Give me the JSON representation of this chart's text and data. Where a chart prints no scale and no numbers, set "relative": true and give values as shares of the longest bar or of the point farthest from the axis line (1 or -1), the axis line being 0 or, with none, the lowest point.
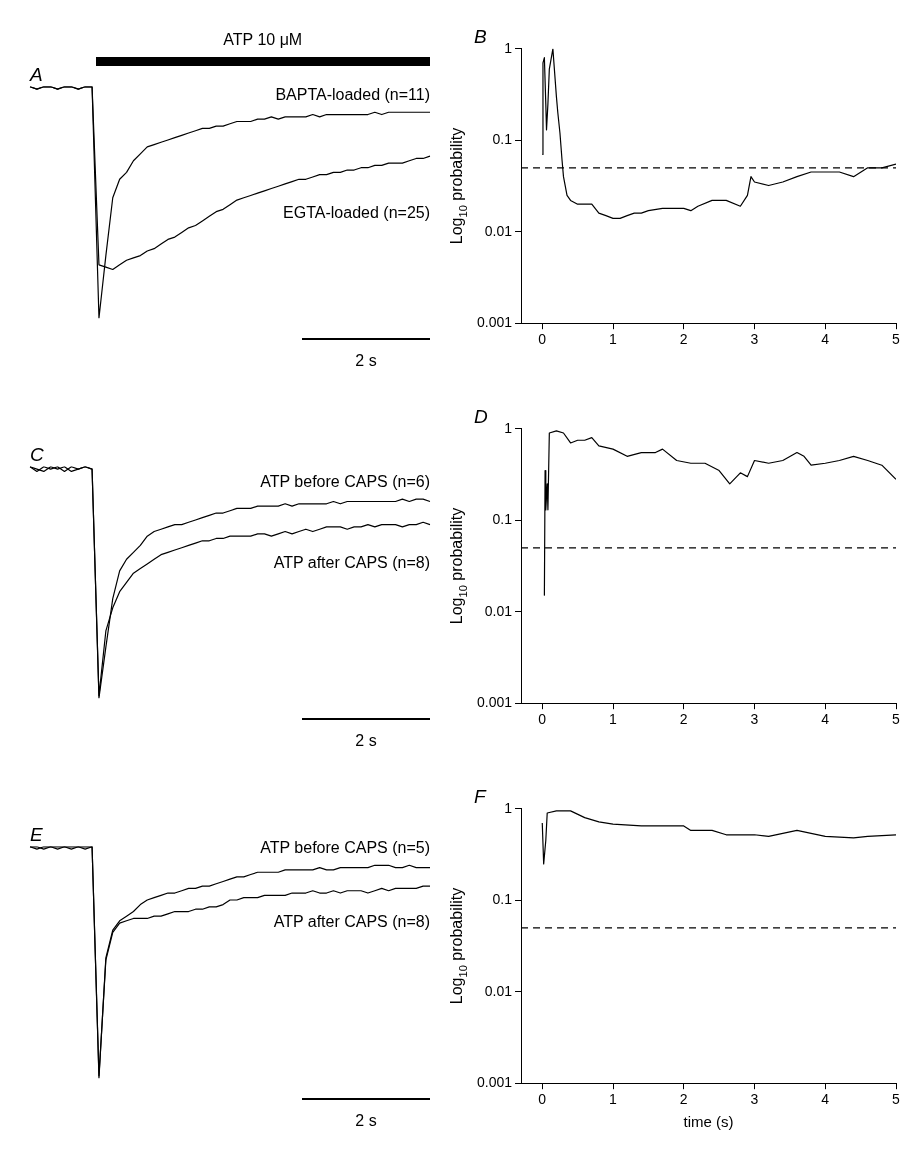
{
  "chart_data": [
    {
      "type": "line",
      "title": "A",
      "categories": [
        null,
        null,
        null,
        null,
        null,
        null,
        null,
        null,
        null,
        null,
        null,
        null,
        null,
        null,
        null,
        null,
        null,
        null,
        null,
        null,
        null,
        null,
        null,
        null,
        null,
        null,
        null,
        null,
        null,
        null,
        null,
        null,
        null,
        null,
        null,
        null,
        null,
        null,
        null,
        null,
        null,
        null,
        null,
        null,
        null,
        null,
        null,
        null,
        null,
        null,
        null,
        null,
        null,
        null,
        null,
        null,
        null,
        null,
        null
      ],
      "relative": true,
      "marker": "none",
      "line_style": "solid",
      "series": [
        {
          "name": "BAPTA-loaded (n=11)",
          "color": "#000000",
          "values": [
            1,
            0.99,
            1,
            1,
            0.99,
            1,
            1,
            0.99,
            1,
            1,
            0,
            0.27,
            0.52,
            0.6,
            0.63,
            0.68,
            0.71,
            0.74,
            0.75,
            0.76,
            0.77,
            0.78,
            0.79,
            0.8,
            0.81,
            0.82,
            0.82,
            0.83,
            0.83,
            0.84,
            0.85,
            0.85,
            0.85,
            0.86,
            0.86,
            0.87,
            0.86,
            0.87,
            0.87,
            0.87,
            0.87,
            0.88,
            0.87,
            0.88,
            0.88,
            0.88,
            0.88,
            0.88,
            0.88,
            0.88,
            0.89,
            0.88,
            0.89,
            0.89,
            0.89,
            0.89,
            0.89,
            0.89,
            0.89
          ]
        },
        {
          "name": "EGTA-loaded (n=25)",
          "color": "#000000",
          "values": [
            1,
            0.99,
            1,
            1,
            0.99,
            1,
            1,
            0.99,
            1,
            1,
            0.23,
            0.22,
            0.21,
            0.23,
            0.25,
            0.26,
            0.27,
            0.29,
            0.3,
            0.32,
            0.34,
            0.35,
            0.37,
            0.39,
            0.4,
            0.42,
            0.44,
            0.46,
            0.47,
            0.49,
            0.51,
            0.52,
            0.53,
            0.54,
            0.55,
            0.56,
            0.57,
            0.58,
            0.59,
            0.6,
            0.6,
            0.61,
            0.62,
            0.62,
            0.63,
            0.63,
            0.64,
            0.64,
            0.65,
            0.65,
            0.66,
            0.66,
            0.67,
            0.67,
            0.67,
            0.68,
            0.69,
            0.69,
            0.7
          ]
        }
      ],
      "annotations": [
        "ATP 10 μM",
        "2 s"
      ]
    },
    {
      "type": "line",
      "title": "B",
      "ylabel": "Log$_{10}$ probability",
      "log": true,
      "xlim": [
        -0.3,
        5
      ],
      "xticks": [
        0,
        1,
        2,
        3,
        4,
        5
      ],
      "ylim": [
        0.001,
        1
      ],
      "yticks": [
        0.001,
        0.01,
        0.1,
        1
      ],
      "marker": "none",
      "line_style": "solid",
      "color": "#000000",
      "x": [
        0,
        0.01,
        0.03,
        0.05,
        0.06,
        0.08,
        0.1,
        0.15,
        0.2,
        0.22,
        0.25,
        0.28,
        0.3,
        0.35,
        0.4,
        0.5,
        0.6,
        0.7,
        0.8,
        0.9,
        1,
        1.1,
        1.2,
        1.3,
        1.4,
        1.5,
        1.7,
        1.9,
        2,
        2.1,
        2.2,
        2.4,
        2.6,
        2.8,
        2.9,
        2.95,
        3,
        3.2,
        3.4,
        3.6,
        3.8,
        4,
        4.2,
        4.4,
        4.6,
        4.8,
        5
      ],
      "values": [
        0.07,
        0.7,
        0.8,
        0.25,
        0.13,
        0.25,
        0.6,
        1,
        0.3,
        0.2,
        0.12,
        0.06,
        0.04,
        0.025,
        0.022,
        0.02,
        0.02,
        0.02,
        0.016,
        0.015,
        0.014,
        0.014,
        0.015,
        0.016,
        0.016,
        0.017,
        0.018,
        0.018,
        0.018,
        0.017,
        0.019,
        0.022,
        0.022,
        0.019,
        0.025,
        0.04,
        0.035,
        0.032,
        0.035,
        0.04,
        0.045,
        0.045,
        0.045,
        0.04,
        0.05,
        0.05,
        0.055
      ],
      "ref_lines": [
        {
          "axis": "y",
          "value": 0.05,
          "color": "#000000",
          "line_style": "dashed"
        }
      ]
    },
    {
      "type": "line",
      "title": "C",
      "categories": [
        null,
        null,
        null,
        null,
        null,
        null,
        null,
        null,
        null,
        null,
        null,
        null,
        null,
        null,
        null,
        null,
        null,
        null,
        null,
        null,
        null,
        null,
        null,
        null,
        null,
        null,
        null,
        null,
        null,
        null,
        null,
        null,
        null,
        null,
        null,
        null,
        null,
        null,
        null,
        null,
        null,
        null,
        null,
        null,
        null,
        null,
        null,
        null,
        null,
        null,
        null,
        null,
        null,
        null,
        null,
        null,
        null,
        null,
        null
      ],
      "relative": true,
      "marker": "none",
      "line_style": "solid",
      "series": [
        {
          "name": "ATP before CAPS (n=6)",
          "color": "#000000",
          "values": [
            1,
            0.98,
            1,
            0.99,
            1,
            0.98,
            1,
            0.99,
            1,
            0.99,
            0,
            0.22,
            0.43,
            0.55,
            0.6,
            0.63,
            0.66,
            0.7,
            0.72,
            0.73,
            0.74,
            0.75,
            0.75,
            0.76,
            0.77,
            0.78,
            0.79,
            0.8,
            0.8,
            0.81,
            0.82,
            0.82,
            0.82,
            0.83,
            0.83,
            0.83,
            0.83,
            0.84,
            0.83,
            0.84,
            0.84,
            0.84,
            0.84,
            0.84,
            0.85,
            0.84,
            0.85,
            0.85,
            0.85,
            0.85,
            0.85,
            0.85,
            0.85,
            0.85,
            0.86,
            0.85,
            0.86,
            0.86,
            0.85
          ]
        },
        {
          "name": "ATP after CAPS (n=8)",
          "color": "#000000",
          "values": [
            1,
            0.99,
            0.98,
            1,
            0.99,
            1,
            0.98,
            0.99,
            1,
            0.99,
            0.01,
            0.29,
            0.39,
            0.46,
            0.5,
            0.54,
            0.56,
            0.58,
            0.6,
            0.62,
            0.63,
            0.64,
            0.65,
            0.66,
            0.67,
            0.68,
            0.68,
            0.69,
            0.69,
            0.7,
            0.7,
            0.7,
            0.7,
            0.71,
            0.71,
            0.7,
            0.71,
            0.72,
            0.71,
            0.72,
            0.73,
            0.72,
            0.73,
            0.74,
            0.74,
            0.74,
            0.73,
            0.74,
            0.74,
            0.75,
            0.74,
            0.75,
            0.75,
            0.75,
            0.74,
            0.75,
            0.75,
            0.76,
            0.75
          ]
        }
      ],
      "annotations": [
        "2 s"
      ]
    },
    {
      "type": "line",
      "title": "D",
      "ylabel": "Log$_{10}$ probability",
      "log": true,
      "xlim": [
        -0.3,
        5
      ],
      "xticks": [
        0,
        1,
        2,
        3,
        4,
        5
      ],
      "ylim": [
        0.001,
        1
      ],
      "yticks": [
        0.001,
        0.01,
        0.1,
        1
      ],
      "marker": "none",
      "line_style": "solid",
      "color": "#000000",
      "x": [
        0.03,
        0.04,
        0.05,
        0.07,
        0.08,
        0.1,
        0.2,
        0.3,
        0.4,
        0.5,
        0.6,
        0.7,
        0.8,
        1,
        1.2,
        1.4,
        1.6,
        1.7,
        1.9,
        2.1,
        2.3,
        2.5,
        2.65,
        2.8,
        2.9,
        3,
        3.2,
        3.4,
        3.6,
        3.7,
        3.8,
        4,
        4.2,
        4.4,
        4.6,
        4.8,
        5
      ],
      "values": [
        0.015,
        0.35,
        0.13,
        0.25,
        0.13,
        0.9,
        0.95,
        0.9,
        0.7,
        0.75,
        0.75,
        0.8,
        0.65,
        0.6,
        0.5,
        0.55,
        0.55,
        0.6,
        0.45,
        0.42,
        0.42,
        0.35,
        0.25,
        0.33,
        0.3,
        0.45,
        0.42,
        0.45,
        0.55,
        0.5,
        0.4,
        0.42,
        0.45,
        0.5,
        0.45,
        0.4,
        0.28
      ],
      "ref_lines": [
        {
          "axis": "y",
          "value": 0.05,
          "color": "#000000",
          "line_style": "dashed"
        }
      ]
    },
    {
      "type": "line",
      "title": "E",
      "categories": [
        null,
        null,
        null,
        null,
        null,
        null,
        null,
        null,
        null,
        null,
        null,
        null,
        null,
        null,
        null,
        null,
        null,
        null,
        null,
        null,
        null,
        null,
        null,
        null,
        null,
        null,
        null,
        null,
        null,
        null,
        null,
        null,
        null,
        null,
        null,
        null,
        null,
        null,
        null,
        null,
        null,
        null,
        null,
        null,
        null,
        null,
        null,
        null,
        null,
        null,
        null,
        null,
        null,
        null,
        null,
        null,
        null,
        null,
        null
      ],
      "relative": true,
      "marker": "none",
      "line_style": "solid",
      "series": [
        {
          "name": "ATP before CAPS (n=5)",
          "color": "#000000",
          "values": [
            1,
            1,
            0.99,
            1,
            1,
            1,
            0.99,
            1,
            1,
            1,
            0,
            0.52,
            0.64,
            0.68,
            0.7,
            0.72,
            0.75,
            0.77,
            0.78,
            0.79,
            0.8,
            0.8,
            0.81,
            0.82,
            0.82,
            0.83,
            0.83,
            0.84,
            0.85,
            0.86,
            0.87,
            0.87,
            0.88,
            0.89,
            0.89,
            0.89,
            0.89,
            0.9,
            0.9,
            0.9,
            0.9,
            0.9,
            0.91,
            0.9,
            0.9,
            0.91,
            0.91,
            0.91,
            0.91,
            0.91,
            0.92,
            0.92,
            0.92,
            0.91,
            0.91,
            0.92,
            0.91,
            0.91,
            0.91
          ]
        },
        {
          "name": "ATP after CAPS (n=8)",
          "color": "#000000",
          "values": [
            1,
            0.99,
            1,
            1,
            0.99,
            1,
            1,
            1,
            0.99,
            1,
            0.01,
            0.51,
            0.63,
            0.67,
            0.68,
            0.69,
            0.69,
            0.69,
            0.7,
            0.7,
            0.71,
            0.72,
            0.72,
            0.72,
            0.73,
            0.73,
            0.74,
            0.74,
            0.75,
            0.77,
            0.77,
            0.78,
            0.78,
            0.78,
            0.79,
            0.79,
            0.79,
            0.79,
            0.8,
            0.8,
            0.8,
            0.81,
            0.8,
            0.8,
            0.81,
            0.8,
            0.81,
            0.81,
            0.81,
            0.8,
            0.81,
            0.82,
            0.81,
            0.82,
            0.82,
            0.82,
            0.82,
            0.83,
            0.83
          ]
        }
      ],
      "annotations": [
        "2 s"
      ]
    },
    {
      "type": "line",
      "title": "F",
      "xlabel": "time (s)",
      "ylabel": "Log$_{10}$ probability",
      "log": true,
      "xlim": [
        -0.3,
        5
      ],
      "xticks": [
        0,
        1,
        2,
        3,
        4,
        5
      ],
      "ylim": [
        0.001,
        1
      ],
      "yticks": [
        0.001,
        0.01,
        0.1,
        1
      ],
      "marker": "none",
      "line_style": "solid",
      "color": "#000000",
      "x": [
        0,
        0.02,
        0.05,
        0.07,
        0.2,
        0.4,
        0.6,
        0.8,
        1,
        1.4,
        1.8,
        2,
        2.1,
        2.4,
        2.6,
        3,
        3.2,
        3.6,
        4,
        4.4,
        4.6,
        5
      ],
      "values": [
        0.7,
        0.25,
        0.45,
        0.9,
        0.95,
        0.95,
        0.8,
        0.72,
        0.68,
        0.65,
        0.65,
        0.65,
        0.58,
        0.58,
        0.52,
        0.52,
        0.5,
        0.58,
        0.5,
        0.48,
        0.5,
        0.52
      ],
      "ref_lines": [
        {
          "axis": "y",
          "value": 0.05,
          "color": "#000000",
          "line_style": "dashed"
        }
      ]
    }
  ]
}
